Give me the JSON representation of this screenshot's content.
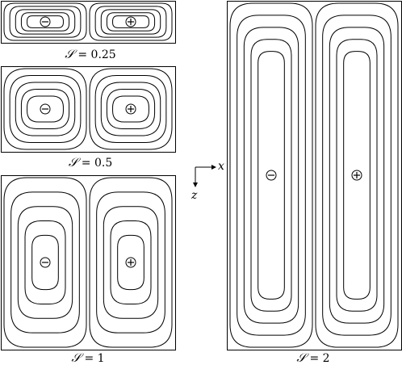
{
  "panels": [
    {
      "id": "s025",
      "caption_var": "𝒮",
      "caption_eq": " = ",
      "caption_value": "0.25",
      "cells": [
        {
          "sign": "minus"
        },
        {
          "sign": "plus"
        }
      ]
    },
    {
      "id": "s05",
      "caption_var": "𝒮",
      "caption_eq": " = ",
      "caption_value": "0.5",
      "cells": [
        {
          "sign": "minus"
        },
        {
          "sign": "plus"
        }
      ]
    },
    {
      "id": "s1",
      "caption_var": "𝒮",
      "caption_eq": " = ",
      "caption_value": "1",
      "cells": [
        {
          "sign": "minus"
        },
        {
          "sign": "plus"
        }
      ]
    },
    {
      "id": "s2",
      "caption_var": "𝒮",
      "caption_eq": " = ",
      "caption_value": "2",
      "cells": [
        {
          "sign": "minus"
        },
        {
          "sign": "plus"
        }
      ]
    }
  ],
  "axes": {
    "x_label": "x",
    "z_label": "z"
  }
}
